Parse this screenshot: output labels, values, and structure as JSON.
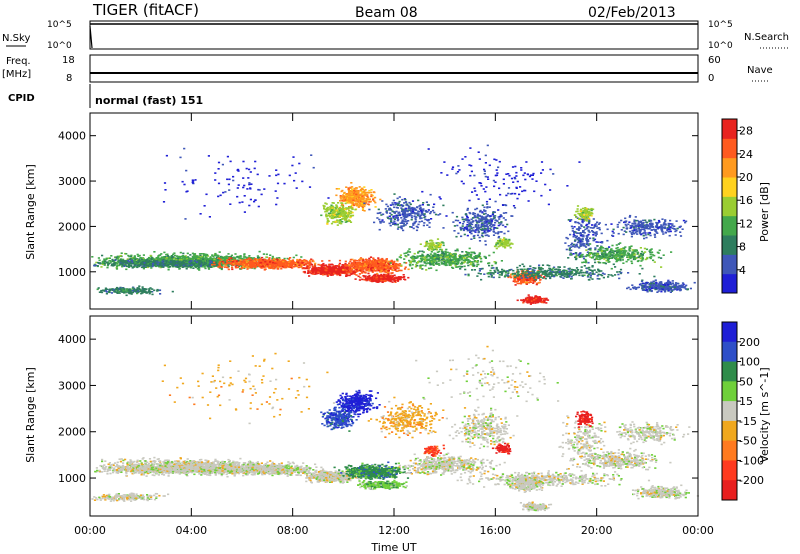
{
  "header": {
    "radar": "TIGER (fitACF)",
    "beam": "Beam 08",
    "date": "02/Feb/2013"
  },
  "status_panels": {
    "nsky_label": "N.Sky",
    "nsearch_label": "N.Search",
    "noise_ticks": [
      "10^5",
      "10^0"
    ],
    "freq_label": "Freq.",
    "freq_unit": "[MHz]",
    "freq_ticks": [
      "18",
      "8"
    ],
    "nave_label": "Nave",
    "nave_ticks": [
      "60",
      "0"
    ],
    "cpid_label": "CPID",
    "cpid_value": "normal (fast) 151"
  },
  "colors": {
    "power": [
      "#1f1fd6",
      "#3f57b8",
      "#2e7d5e",
      "#43a84b",
      "#9acd32",
      "#ffd21f",
      "#ff9a1f",
      "#ff5a1f",
      "#e8231f"
    ],
    "velocity": [
      "#1f1fd6",
      "#2e4fc8",
      "#2f8c4a",
      "#6fd03a",
      "#c9c9c0",
      "#f0a81e",
      "#ff7a1f",
      "#ff3a1f",
      "#e81f1f"
    ]
  },
  "chart_data": [
    {
      "type": "heatmap",
      "title": "Power",
      "xlabel": "Time UT",
      "ylabel": "Slant Range [km]",
      "x_ticks": [
        "00:00",
        "04:00",
        "08:00",
        "12:00",
        "16:00",
        "20:00",
        "00:00"
      ],
      "y_ticks": [
        "1000",
        "2000",
        "3000",
        "4000"
      ],
      "y_range_km": [
        180,
        4500
      ],
      "colorbar_label": "Power [dB]",
      "colorbar_ticks": [
        "4",
        "8",
        "12",
        "16",
        "20",
        "24",
        "28"
      ],
      "colorbar_range": [
        0,
        30
      ]
    },
    {
      "type": "heatmap",
      "title": "Velocity",
      "xlabel": "Time UT",
      "ylabel": "Slant Range [km]",
      "x_ticks": [
        "00:00",
        "04:00",
        "08:00",
        "12:00",
        "16:00",
        "20:00",
        "00:00"
      ],
      "y_ticks": [
        "1000",
        "2000",
        "3000",
        "4000"
      ],
      "y_range_km": [
        180,
        4500
      ],
      "colorbar_label": "Velocity [m s^-1]",
      "colorbar_ticks": [
        "200",
        "100",
        "50",
        "15",
        "-15",
        "-50",
        "-100",
        "-200"
      ],
      "colorbar_range": [
        -250,
        250
      ]
    }
  ]
}
